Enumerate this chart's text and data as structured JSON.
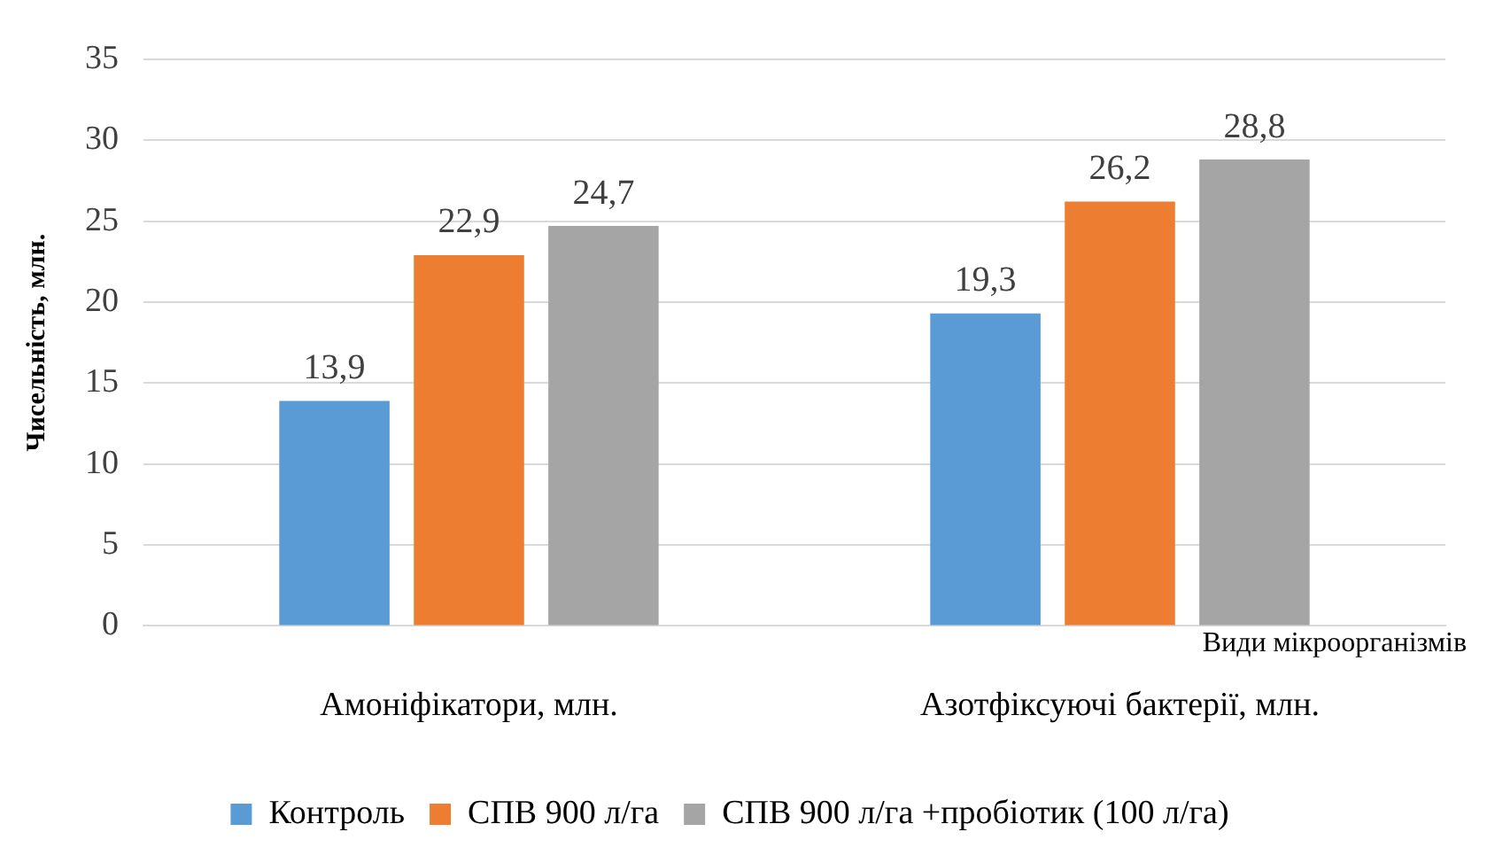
{
  "chart_data": {
    "type": "bar",
    "ylabel": "Чисельність, млн.",
    "xlabel": "Види мікроорганізмів",
    "categories": [
      "Амоніфікатори, млн.",
      "Азотфіксуючі бактерії, млн."
    ],
    "series": [
      {
        "name": "Контроль",
        "color": "#5b9bd5",
        "values": [
          13.9,
          19.3
        ],
        "value_labels": [
          "13,9",
          "19,3"
        ]
      },
      {
        "name": "СПВ 900 л/га",
        "color": "#ed7d31",
        "values": [
          22.9,
          26.2
        ],
        "value_labels": [
          "22,9",
          "26,2"
        ]
      },
      {
        "name": "СПВ 900 л/га +пробіотик (100 л/га)",
        "color": "#a5a5a5",
        "values": [
          24.7,
          28.8
        ],
        "value_labels": [
          "24,7",
          "28,8"
        ]
      }
    ],
    "ylim": [
      0,
      35
    ],
    "yticks": [
      0,
      5,
      10,
      15,
      20,
      25,
      30,
      35
    ],
    "grid": "y",
    "legend": "bottom"
  }
}
